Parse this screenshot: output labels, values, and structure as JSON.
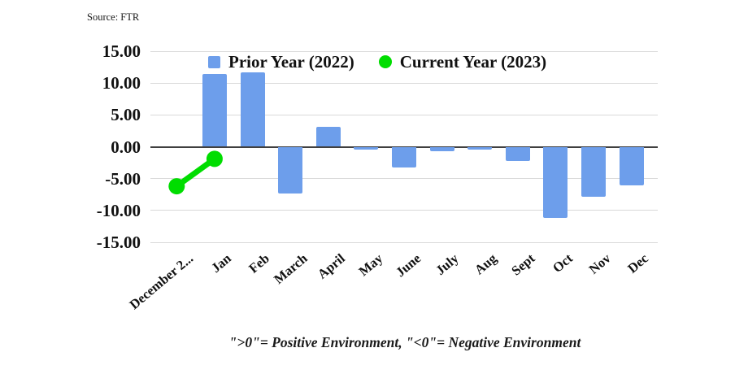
{
  "source": "Source: FTR",
  "legend": {
    "items": [
      {
        "label": "Prior Year (2022)",
        "color": "#6d9eeb",
        "marker": "square"
      },
      {
        "label": "Current Year (2023)",
        "color": "#00dd00",
        "marker": "circle"
      }
    ]
  },
  "caption": "\">0\"= Positive Environment, \"<0\"= Negative Environment",
  "chart_data": {
    "type": "combo",
    "title": "",
    "categories": [
      "December 2...",
      "Jan",
      "Feb",
      "March",
      "April",
      "May",
      "June",
      "July",
      "Aug",
      "Sept",
      "Oct",
      "Nov",
      "Dec"
    ],
    "series": [
      {
        "name": "Prior Year (2022)",
        "type": "bar",
        "color": "#6d9eeb",
        "values": [
          null,
          11.4,
          11.7,
          -7.3,
          3.1,
          -0.4,
          -3.2,
          -0.7,
          -0.4,
          -2.2,
          -11.2,
          -7.9,
          -6.0
        ]
      },
      {
        "name": "Current Year (2023)",
        "type": "line",
        "color": "#00dd00",
        "values": [
          -6.2,
          -1.9,
          null,
          null,
          null,
          null,
          null,
          null,
          null,
          null,
          null,
          null,
          null
        ]
      }
    ],
    "ylim": [
      -15,
      15
    ],
    "yticks": [
      15,
      10,
      5,
      0,
      -5,
      -10,
      -15
    ],
    "ytick_labels": [
      "15.00",
      "10.00",
      "5.00",
      "0.00",
      "-5.00",
      "-10.00",
      "-15.00"
    ],
    "grid": "horizontal",
    "legend_position": "top-inside",
    "xlabel": "",
    "ylabel": ""
  }
}
